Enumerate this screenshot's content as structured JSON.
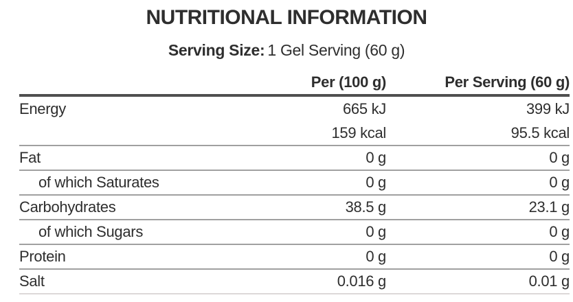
{
  "title": "NUTRITIONAL INFORMATION",
  "serving": {
    "label": "Serving Size:",
    "value": "1 Gel Serving (60 g)"
  },
  "table": {
    "columns": [
      "",
      "Per (100 g)",
      "Per Serving (60 g)"
    ],
    "rows": [
      {
        "label": "Energy",
        "per100": "665 kJ",
        "per_serving": "399 kJ",
        "indent": false,
        "divider": false
      },
      {
        "label": "",
        "per100": "159 kcal",
        "per_serving": "95.5 kcal",
        "indent": false,
        "divider": true
      },
      {
        "label": "Fat",
        "per100": "0 g",
        "per_serving": "0 g",
        "indent": false,
        "divider": true
      },
      {
        "label": "of which Saturates",
        "per100": "0 g",
        "per_serving": "0 g",
        "indent": true,
        "divider": true
      },
      {
        "label": "Carbohydrates",
        "per100": "38.5 g",
        "per_serving": "23.1 g",
        "indent": false,
        "divider": true
      },
      {
        "label": "of which Sugars",
        "per100": "0 g",
        "per_serving": "0 g",
        "indent": true,
        "divider": true
      },
      {
        "label": "Protein",
        "per100": "0 g",
        "per_serving": "0 g",
        "indent": false,
        "divider": true
      },
      {
        "label": "Salt",
        "per100": "0.016 g",
        "per_serving": "0.01 g",
        "indent": false,
        "divider": true
      }
    ]
  },
  "colors": {
    "text": "#2e2e2e",
    "rule": "#4f4f4f",
    "divider": "#a0a0a0",
    "divider_light": "#dcd8d8"
  }
}
